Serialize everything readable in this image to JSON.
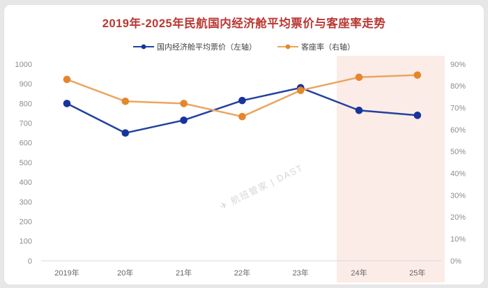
{
  "page": {
    "outer_background": "#e7e7e7",
    "card_background": "#ffffff"
  },
  "header": {
    "title": "2019年-2025年民航国内经济舱平均票价与客座率走势",
    "title_color": "#b93732"
  },
  "legend": [
    {
      "label": "国内经济舱平均票价（左轴）",
      "color": "#16349c",
      "line_color": "#23419f"
    },
    {
      "label": "客座率（右轴）",
      "color": "#e5862d",
      "line_color": "#eba55e"
    }
  ],
  "watermark": {
    "icon": "plane-icon",
    "glyph": "✈",
    "text": "航班管家 | DAST"
  },
  "chart_data": {
    "type": "line",
    "title": "2019年-2025年民航国内经济舱平均票价与客座率走势",
    "categories": [
      "2019年",
      "20年",
      "21年",
      "22年",
      "23年",
      "24年",
      "25年"
    ],
    "series": [
      {
        "name": "国内经济舱平均票价（左轴）",
        "axis": "left",
        "color": "#16349c",
        "line_color": "#23419f",
        "values": [
          800,
          650,
          715,
          815,
          880,
          765,
          740
        ]
      },
      {
        "name": "客座率（右轴）",
        "axis": "right",
        "color": "#e5862d",
        "line_color": "#eba55e",
        "unit": "%",
        "values": [
          83,
          73,
          72,
          66,
          78,
          84,
          85
        ]
      }
    ],
    "left_axis": {
      "min": 0,
      "max": 1000,
      "step": 100
    },
    "right_axis": {
      "min": 0,
      "max": 90,
      "step": 10,
      "suffix": "%"
    },
    "grid": false,
    "legend_position": "top",
    "forecast_band": {
      "from_category": "24年",
      "to_category": "25年",
      "color": "#fbece7"
    },
    "axis_label_color": "#8c8c8c",
    "x_label_color": "#666666",
    "axis_line_color": "#d9d9d9"
  }
}
